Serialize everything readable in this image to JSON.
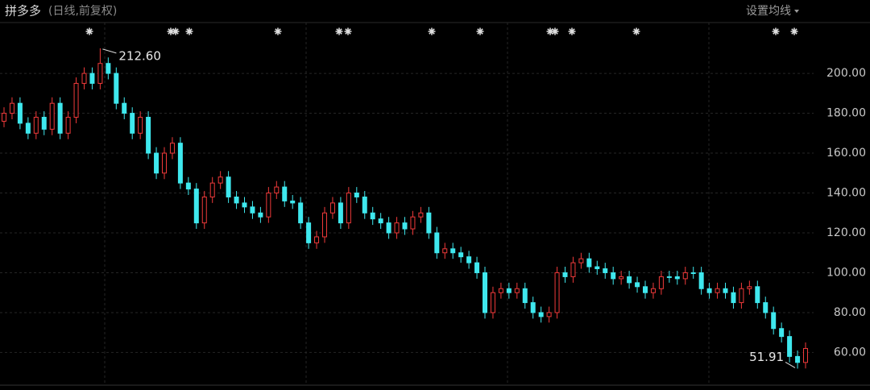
{
  "chart_data": {
    "type": "candlestick",
    "title": "拼多多",
    "subtitle": "(日线,前复权)",
    "button": "设置均线",
    "ylim": [
      43.6,
      225.5
    ],
    "yticks": [
      {
        "value": 60,
        "label": "60.00"
      },
      {
        "value": 80,
        "label": "80.00"
      },
      {
        "value": 100,
        "label": "100.00"
      },
      {
        "value": 120,
        "label": "120.00"
      },
      {
        "value": 140,
        "label": "140.00"
      },
      {
        "value": 160,
        "label": "160.00"
      },
      {
        "value": 180,
        "label": "180.00"
      },
      {
        "value": 200,
        "label": "200.00"
      }
    ],
    "grid": true,
    "up_color": "#f03a3a",
    "down_color": "#3fe8ee",
    "open": [
      176,
      180,
      185,
      175,
      170,
      178,
      172,
      185,
      170,
      178,
      195,
      200,
      195,
      205,
      200,
      185,
      180,
      170,
      178,
      160,
      150,
      160,
      165,
      145,
      142,
      125,
      138,
      145,
      148,
      138,
      135,
      133,
      130,
      128,
      140,
      143,
      136,
      135,
      125,
      115,
      118,
      130,
      135,
      125,
      140,
      138,
      130,
      127,
      125,
      120,
      125,
      122,
      128,
      130,
      120,
      110,
      112,
      110,
      108,
      105,
      100,
      80,
      90,
      92,
      90,
      92,
      85,
      80,
      78,
      80,
      100,
      98,
      105,
      107,
      103,
      102,
      100,
      97,
      98,
      95,
      93,
      90,
      92,
      98,
      98,
      97,
      100,
      100,
      92,
      90,
      92,
      90,
      85,
      92,
      93,
      85,
      80,
      72,
      68,
      58,
      55
    ],
    "high": [
      183,
      188,
      188,
      178,
      181,
      181,
      188,
      188,
      181,
      198,
      203,
      203,
      212.6,
      208,
      203,
      188,
      183,
      181,
      181,
      163,
      163,
      168,
      168,
      148,
      145,
      141,
      148,
      151,
      151,
      141,
      138,
      136,
      133,
      143,
      146,
      146,
      139,
      138,
      128,
      121,
      133,
      138,
      138,
      143,
      143,
      141,
      133,
      130,
      128,
      128,
      128,
      131,
      133,
      133,
      123,
      115,
      115,
      113,
      111,
      108,
      103,
      93,
      95,
      95,
      95,
      95,
      88,
      83,
      83,
      103,
      103,
      108,
      110,
      110,
      106,
      105,
      103,
      101,
      101,
      98,
      96,
      95,
      101,
      101,
      101,
      103,
      103,
      103,
      95,
      95,
      95,
      93,
      95,
      96,
      96,
      88,
      83,
      75,
      71,
      61,
      65
    ],
    "low": [
      173,
      177,
      172,
      167,
      167,
      169,
      169,
      167,
      167,
      175,
      192,
      192,
      192,
      197,
      182,
      177,
      167,
      167,
      157,
      147,
      147,
      157,
      142,
      139,
      122,
      122,
      135,
      142,
      135,
      132,
      130,
      127,
      125,
      125,
      137,
      133,
      132,
      122,
      112,
      112,
      115,
      127,
      122,
      122,
      135,
      127,
      124,
      122,
      117,
      117,
      119,
      119,
      125,
      117,
      107,
      107,
      107,
      105,
      102,
      97,
      77,
      77,
      87,
      87,
      87,
      82,
      77,
      75,
      75,
      77,
      95,
      95,
      102,
      100,
      99,
      97,
      94,
      94,
      92,
      90,
      87,
      87,
      89,
      95,
      94,
      94,
      97,
      89,
      87,
      87,
      87,
      82,
      82,
      89,
      82,
      77,
      69,
      65,
      55,
      51.91,
      52
    ],
    "close": [
      180,
      185,
      175,
      170,
      178,
      172,
      185,
      170,
      178,
      195,
      200,
      195,
      205,
      200,
      185,
      180,
      170,
      178,
      160,
      150,
      160,
      165,
      145,
      142,
      125,
      138,
      145,
      148,
      138,
      135,
      133,
      130,
      128,
      140,
      143,
      136,
      135,
      125,
      115,
      118,
      130,
      135,
      125,
      140,
      138,
      130,
      127,
      125,
      120,
      125,
      122,
      128,
      130,
      120,
      110,
      112,
      110,
      108,
      105,
      100,
      80,
      90,
      92,
      90,
      92,
      85,
      80,
      78,
      80,
      100,
      98,
      105,
      107,
      103,
      102,
      100,
      97,
      98,
      95,
      93,
      90,
      92,
      98,
      98,
      97,
      100,
      100,
      92,
      90,
      92,
      90,
      85,
      92,
      93,
      85,
      80,
      72,
      68,
      58,
      55,
      62
    ],
    "high_label": "212.60",
    "low_label": "51.91"
  }
}
